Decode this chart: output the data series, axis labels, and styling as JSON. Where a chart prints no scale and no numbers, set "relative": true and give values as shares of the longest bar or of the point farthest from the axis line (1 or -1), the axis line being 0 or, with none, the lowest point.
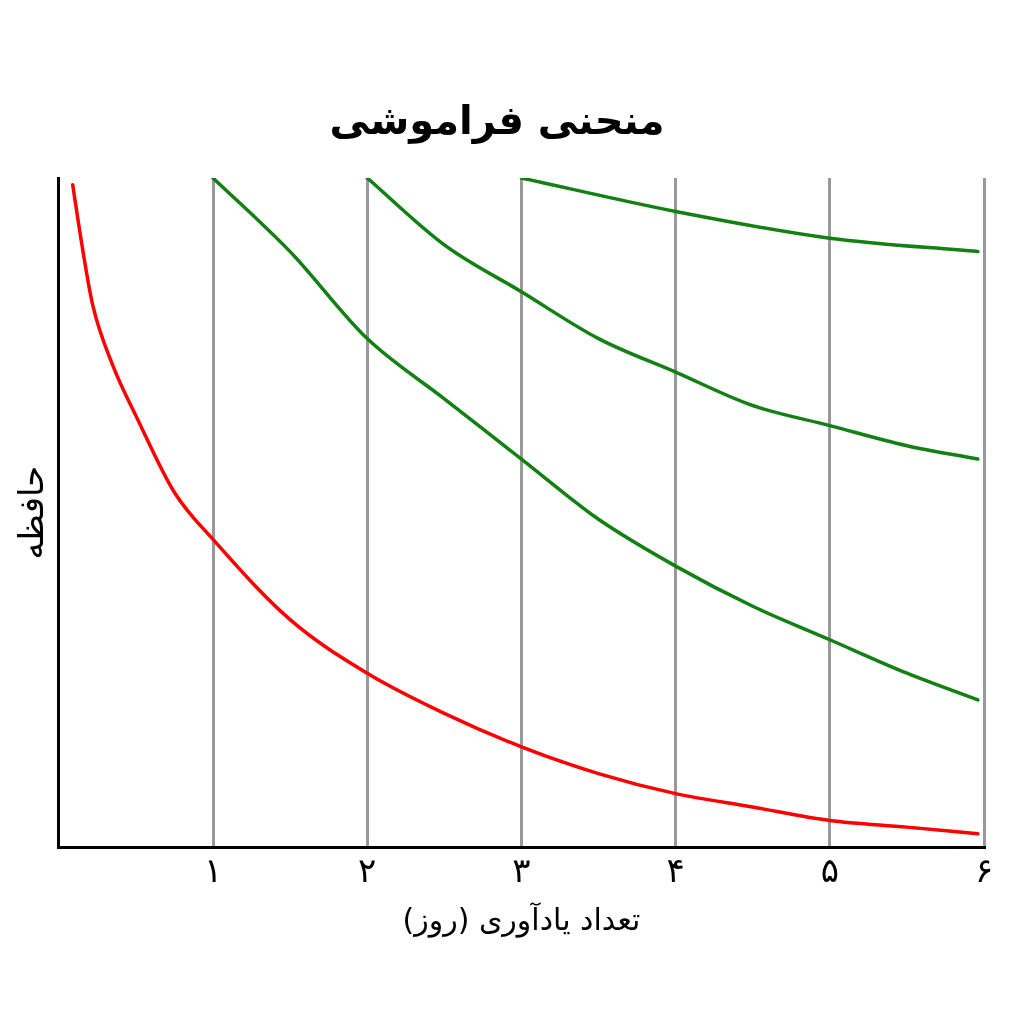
{
  "chart_data": {
    "type": "line",
    "title": "منحنی فراموشی",
    "xlabel": "تعداد یادآوری (روز)",
    "ylabel": "حافظه",
    "relative": true,
    "xlim": [
      0,
      6
    ],
    "xticks": [
      {
        "value": 1,
        "label": "۱"
      },
      {
        "value": 2,
        "label": "۲"
      },
      {
        "value": 3,
        "label": "۳"
      },
      {
        "value": 4,
        "label": "۴"
      },
      {
        "value": 5,
        "label": "۵"
      },
      {
        "value": 6,
        "label": "۶"
      }
    ],
    "grid": "x",
    "marker": "none",
    "legend": false,
    "series": [
      {
        "color": "#ff0000",
        "x": [
          0.09,
          0.15,
          0.22,
          0.35,
          0.51,
          0.75,
          1,
          1.5,
          2,
          2.5,
          3,
          3.5,
          4,
          4.5,
          5,
          5.5,
          5.96
        ],
        "values": [
          0.99,
          0.9,
          0.81,
          0.72,
          0.64,
          0.53,
          0.46,
          0.34,
          0.26,
          0.2,
          0.15,
          0.11,
          0.08,
          0.06,
          0.04,
          0.03,
          0.02
        ]
      },
      {
        "color": "#128012",
        "x": [
          1,
          1.5,
          2,
          2.5,
          3,
          3.5,
          4,
          4.5,
          5,
          5.5,
          5.96
        ],
        "values": [
          1,
          0.89,
          0.76,
          0.67,
          0.58,
          0.49,
          0.42,
          0.36,
          0.31,
          0.26,
          0.22
        ]
      },
      {
        "color": "#128012",
        "x": [
          2,
          2.5,
          3,
          3.5,
          4,
          4.5,
          5,
          5.5,
          5.96
        ],
        "values": [
          1,
          0.9,
          0.83,
          0.76,
          0.71,
          0.66,
          0.63,
          0.6,
          0.58
        ]
      },
      {
        "color": "#128012",
        "x": [
          3,
          4,
          5,
          5.96
        ],
        "values": [
          1,
          0.95,
          0.91,
          0.89
        ]
      }
    ]
  }
}
